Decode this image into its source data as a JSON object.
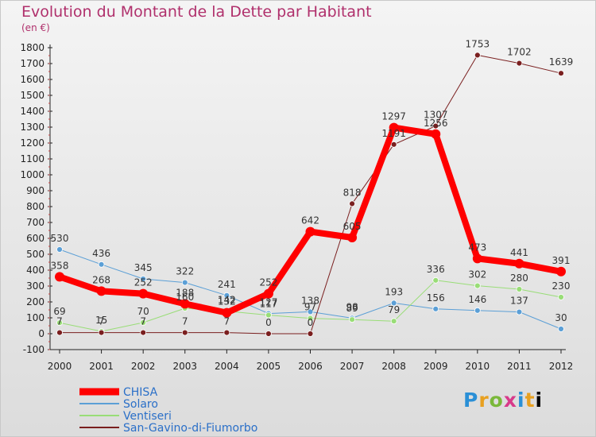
{
  "header": {
    "title": "Evolution du Montant de la Dette par Habitant",
    "subtitle": "(en €)"
  },
  "logo": {
    "text": "Proxiti",
    "colors": [
      "#2a8fd6",
      "#e8a020",
      "#7ab83a",
      "#d83a8a",
      "#2a8fd6",
      "#e8a020"
    ]
  },
  "chart_data": {
    "type": "line",
    "title": "Evolution du Montant de la Dette par Habitant",
    "subtitle": "(en €)",
    "xlabel": "",
    "ylabel": "",
    "x": [
      "2000",
      "2001",
      "2002",
      "2003",
      "2004",
      "2005",
      "2006",
      "2007",
      "2008",
      "2009",
      "2010",
      "2011",
      "2012"
    ],
    "ylim": [
      -100,
      1800
    ],
    "yticks": [
      -100,
      0,
      100,
      200,
      300,
      400,
      500,
      600,
      700,
      800,
      900,
      1000,
      1100,
      1200,
      1300,
      1400,
      1500,
      1600,
      1700,
      1800
    ],
    "grid": false,
    "legend": "bottom-left",
    "series": [
      {
        "name": "CHISA",
        "color": "#ff0000",
        "width": 8,
        "values": [
          358,
          268,
          252,
          188,
          132,
          252,
          642,
          605,
          1297,
          1256,
          473,
          441,
          391
        ],
        "labels": [
          "358",
          "268",
          "252",
          "188",
          "132",
          "252",
          "642",
          "605",
          "1297",
          "1256",
          "473",
          "441",
          "391"
        ]
      },
      {
        "name": "Solaro",
        "color": "#5b9fd6",
        "width": 1,
        "values": [
          530,
          436,
          345,
          322,
          241,
          127,
          138,
          98,
          193,
          156,
          146,
          137,
          30
        ],
        "labels": [
          "530",
          "436",
          "345",
          "322",
          "241",
          "127",
          "138",
          "98",
          "193",
          "156",
          "146",
          "137",
          "30"
        ]
      },
      {
        "name": "Ventiseri",
        "color": "#99dd77",
        "width": 1,
        "values": [
          69,
          15,
          70,
          160,
          142,
          117,
          97,
          89,
          79,
          336,
          302,
          280,
          230
        ],
        "labels": [
          "69",
          "15",
          "70",
          "160",
          "142",
          "117",
          "97",
          "89",
          "79",
          "336",
          "302",
          "280",
          "230"
        ]
      },
      {
        "name": "San-Gavino-di-Fiumorbo",
        "color": "#7a1f1f",
        "width": 1,
        "values": [
          7,
          7,
          7,
          7,
          7,
          0,
          0,
          818,
          1191,
          1307,
          1753,
          1702,
          1639
        ],
        "labels": [
          "7",
          "7",
          "7",
          "7",
          "7",
          "0",
          "0",
          "818",
          "1191",
          "1307",
          "1753",
          "1702",
          "1639"
        ]
      }
    ]
  }
}
